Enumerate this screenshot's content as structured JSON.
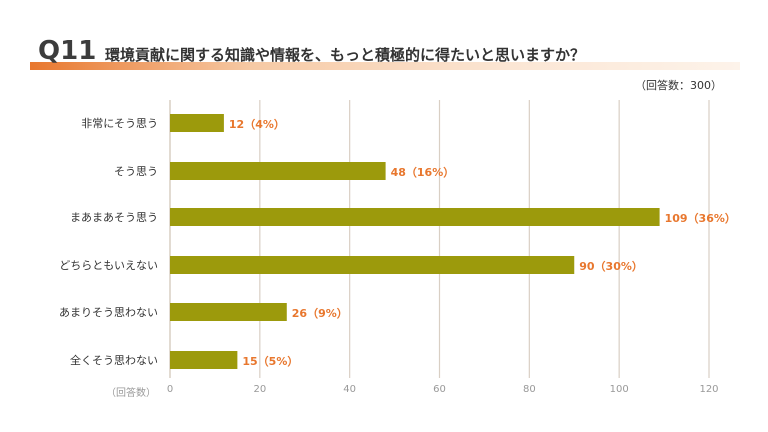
{
  "header": {
    "q_number": "Q11",
    "question": "環境貢献に関する知識や情報を、もっと積極的に得たいと思いますか？",
    "respondents": "（回答数：300）"
  },
  "chart_data": {
    "type": "bar",
    "orientation": "horizontal",
    "categories": [
      "非常にそう思う",
      "そう思う",
      "まあまあそう思う",
      "どちらともいえない",
      "あまりそう思わない",
      "全くそう思わない"
    ],
    "values": [
      12,
      48,
      109,
      90,
      26,
      15
    ],
    "percents": [
      "4%",
      "16%",
      "36%",
      "30%",
      "9%",
      "5%"
    ],
    "value_labels": [
      "12（4%）",
      "48（16%）",
      "109（36%）",
      "90（30%）",
      "26（9%）",
      "15（5%）"
    ],
    "xlim": [
      0,
      120
    ],
    "ticks": [
      "0",
      "20",
      "40",
      "60",
      "80",
      "100",
      "120"
    ],
    "xlabel": "（回答数）",
    "grid": true,
    "bar_color": "#9c9a0c",
    "label_color": "#e8772e",
    "grid_color": "#d9cfc4"
  }
}
